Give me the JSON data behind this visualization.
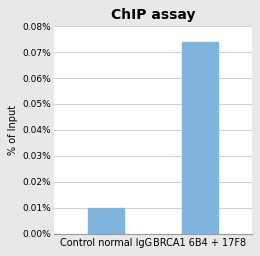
{
  "title": "ChIP assay",
  "categories": [
    "Control normal IgG",
    "BRCA1 6B4 + 17F8"
  ],
  "values": [
    0.0001,
    0.00074
  ],
  "bar_color": "#7FB4DC",
  "ylabel": "% of Input",
  "ylim": [
    0,
    0.0008
  ],
  "yticks": [
    0.0,
    0.0001,
    0.0002,
    0.0003,
    0.0004,
    0.0005,
    0.0006,
    0.0007,
    0.0008
  ],
  "ytick_labels": [
    "0.00%",
    "0.01%",
    "0.02%",
    "0.03%",
    "0.04%",
    "0.05%",
    "0.06%",
    "0.07%",
    "0.08%"
  ],
  "title_fontsize": 10,
  "ylabel_fontsize": 7,
  "tick_fontsize": 6.5,
  "xlabel_fontsize": 7,
  "bg_color": "#e8e8e8",
  "plot_bg": "#ffffff",
  "grid_color": "#c8c8c8",
  "spine_color": "#999999"
}
